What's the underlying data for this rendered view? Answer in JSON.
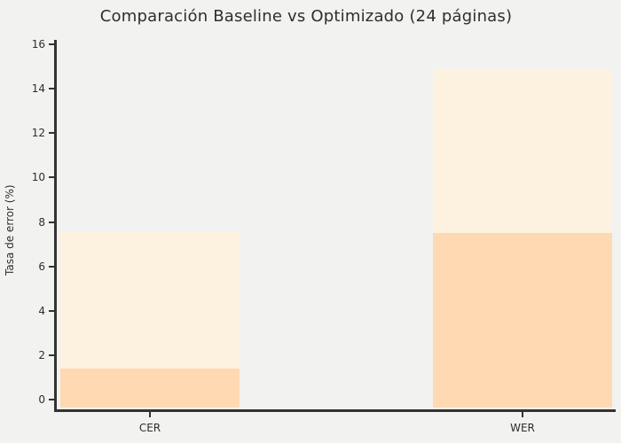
{
  "figure": {
    "title": "Comparación Baseline vs Optimizado (24 páginas)"
  },
  "chart_data": {
    "type": "bar",
    "title": "Comparación Baseline vs Optimizado (24 páginas)",
    "categories": [
      "CER",
      "WER"
    ],
    "series": [
      {
        "name": "Baseline",
        "values": [
          7.6,
          14.9
        ],
        "color": "#fcf2df"
      },
      {
        "name": "Optimizado",
        "values": [
          1.4,
          7.5
        ],
        "color": "#fed9b2"
      }
    ],
    "xlabel": "",
    "ylabel": "Tasa de error (%)",
    "ylim": [
      0,
      16
    ],
    "yticks": [
      0,
      2,
      4,
      6,
      8,
      10,
      12,
      14,
      16
    ],
    "xlim": [
      -0.25,
      1.25
    ],
    "bar_width": 0.48,
    "bar_layout": "overlaid",
    "grid": false,
    "legend": "none",
    "background_color": "#f2f2f1",
    "axis_color": "#333333",
    "text_color": "#2e2e2e"
  }
}
